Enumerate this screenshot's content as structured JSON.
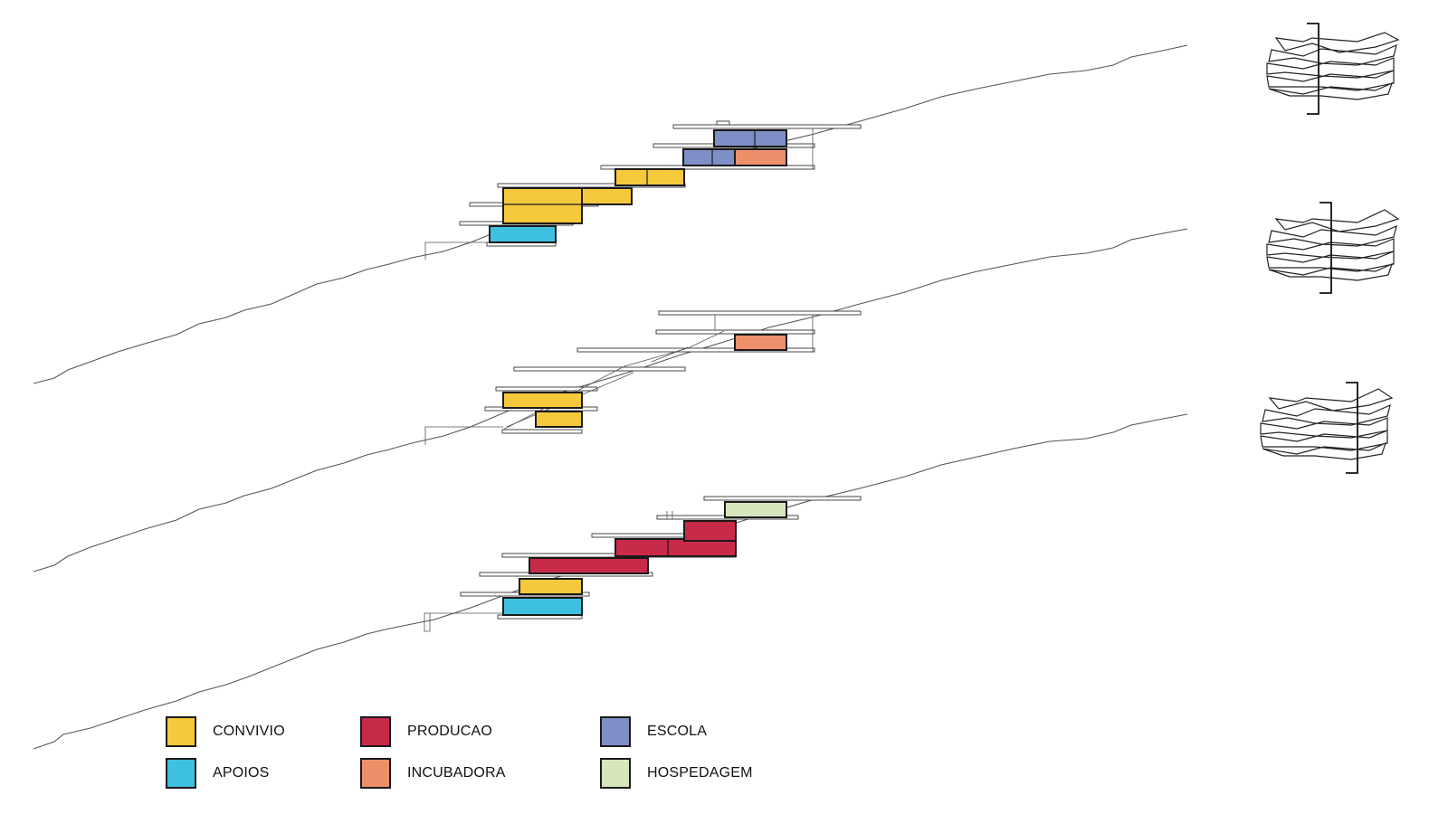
{
  "colors": {
    "convivio": "#f6c83c",
    "apoios": "#3ec0e0",
    "producao": "#c92a4a",
    "incubadora": "#ee8f6b",
    "escola": "#7e8fc8",
    "hospedagem": "#d8e6bd"
  },
  "legend": [
    {
      "key": "convivio",
      "label": "CONVIVIO"
    },
    {
      "key": "apoios",
      "label": "APOIOS"
    },
    {
      "key": "producao",
      "label": "PRODUCAO"
    },
    {
      "key": "incubadora",
      "label": "INCUBADORA"
    },
    {
      "key": "escola",
      "label": "ESCOLA"
    },
    {
      "key": "hospedagem",
      "label": "HOSPEDAGEM"
    }
  ],
  "sections": [
    {
      "name": "section-1-blocks",
      "blocks": [
        "apoios",
        "convivio",
        "convivio",
        "convivio",
        "escola",
        "escola",
        "incubadora"
      ]
    },
    {
      "name": "section-2-blocks",
      "blocks": [
        "convivio",
        "convivio",
        "incubadora"
      ]
    },
    {
      "name": "section-3-blocks",
      "blocks": [
        "apoios",
        "convivio",
        "producao",
        "producao",
        "producao",
        "hospedagem"
      ]
    }
  ]
}
